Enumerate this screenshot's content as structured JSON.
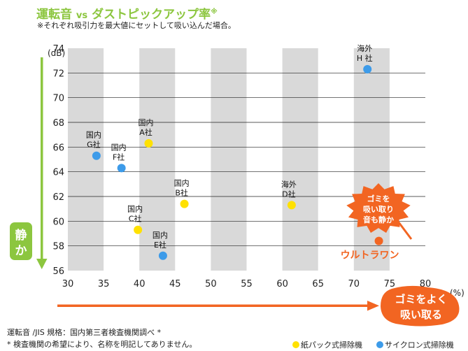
{
  "header": {
    "title_main": "運転音",
    "title_vs": "vs",
    "title_rest": "ダストピックアップ率",
    "title_mark": "※",
    "subtitle": "※それぞれ吸引力を最大値にセットして吸い込んだ場合。"
  },
  "chart_data": {
    "type": "scatter",
    "xlim": [
      30,
      80
    ],
    "ylim": [
      56,
      74
    ],
    "x_ticks": [
      30,
      35,
      40,
      45,
      50,
      55,
      60,
      65,
      70,
      75,
      80
    ],
    "y_ticks": [
      56,
      58,
      60,
      62,
      64,
      66,
      68,
      70,
      72,
      74
    ],
    "x_unit": "(%)",
    "y_unit": "(dB)",
    "grid": "alternating vertical bands, horizontal lines",
    "colors": {
      "paper_bag": "#ffe100",
      "cyclone": "#3d9be9",
      "ultra": "#f26522",
      "band": "#d9d9d9",
      "green": "#8cc63f"
    },
    "series": [
      {
        "name": "紙パック式掃除機",
        "color": "#ffe100",
        "points": [
          {
            "x": 41.3,
            "y": 66.3,
            "label": [
              "国内",
              "A社"
            ]
          },
          {
            "x": 46.3,
            "y": 61.4,
            "label": [
              "国内",
              "B社"
            ]
          },
          {
            "x": 39.8,
            "y": 59.3,
            "label": [
              "国内",
              "C社"
            ]
          },
          {
            "x": 61.3,
            "y": 61.3,
            "label": [
              "海外",
              "D社"
            ]
          }
        ]
      },
      {
        "name": "サイクロン式掃除機",
        "color": "#3d9be9",
        "points": [
          {
            "x": 43.3,
            "y": 57.2,
            "label": [
              "国内",
              "E社"
            ]
          },
          {
            "x": 37.5,
            "y": 64.3,
            "label": [
              "国内",
              "F社"
            ]
          },
          {
            "x": 34.0,
            "y": 65.3,
            "label": [
              "国内",
              "G社"
            ]
          },
          {
            "x": 71.9,
            "y": 72.3,
            "label": [
              "海外",
              "H 社"
            ]
          }
        ]
      },
      {
        "color": "#f26522",
        "points": [
          {
            "x": 73.5,
            "y": 58.4,
            "label": [
              "ウルトラワン"
            ]
          }
        ]
      }
    ],
    "annotations": {
      "callout": [
        "ゴミを",
        "吸い取り",
        "音も静か"
      ],
      "quiet_label": [
        "静",
        "か"
      ],
      "better_label": [
        "ゴミをよく",
        "吸い取る"
      ]
    }
  },
  "footer": {
    "note1": "運転音 /JIS 規格：国内第三者検査機関調べ *",
    "note2": "* 検査機関の希望により、名称を明記してありません。"
  },
  "legend": {
    "paper_bag": "紙パック式掃除機",
    "cyclone": "サイクロン式掃除機"
  }
}
